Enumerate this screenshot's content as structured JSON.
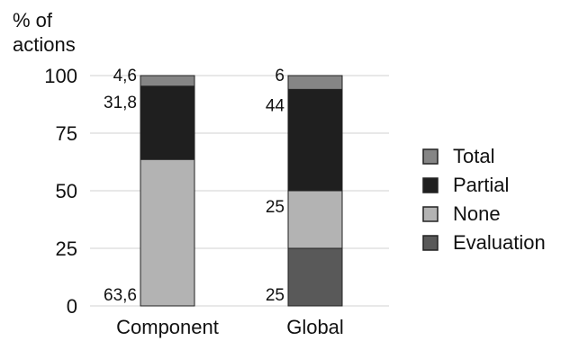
{
  "chart_data": {
    "type": "bar",
    "stacked": true,
    "ylabel": "% of actions",
    "ylim": [
      0,
      100
    ],
    "yticks": [
      0,
      25,
      50,
      75,
      100
    ],
    "grid": true,
    "legend_position": "right",
    "categories": [
      "Component",
      "Global"
    ],
    "series": [
      {
        "name": "Evaluation",
        "color": "#595959",
        "values": [
          0,
          25
        ]
      },
      {
        "name": "None",
        "color": "#b3b3b3",
        "values": [
          63.6,
          25
        ]
      },
      {
        "name": "Partial",
        "color": "#1f1f1f",
        "values": [
          31.8,
          44
        ]
      },
      {
        "name": "Total",
        "color": "#858585",
        "values": [
          4.6,
          6
        ]
      }
    ],
    "data_labels": [
      [
        "",
        "63,6",
        "31,8",
        "4,6"
      ],
      [
        "25",
        "25",
        "44",
        "6"
      ]
    ]
  }
}
